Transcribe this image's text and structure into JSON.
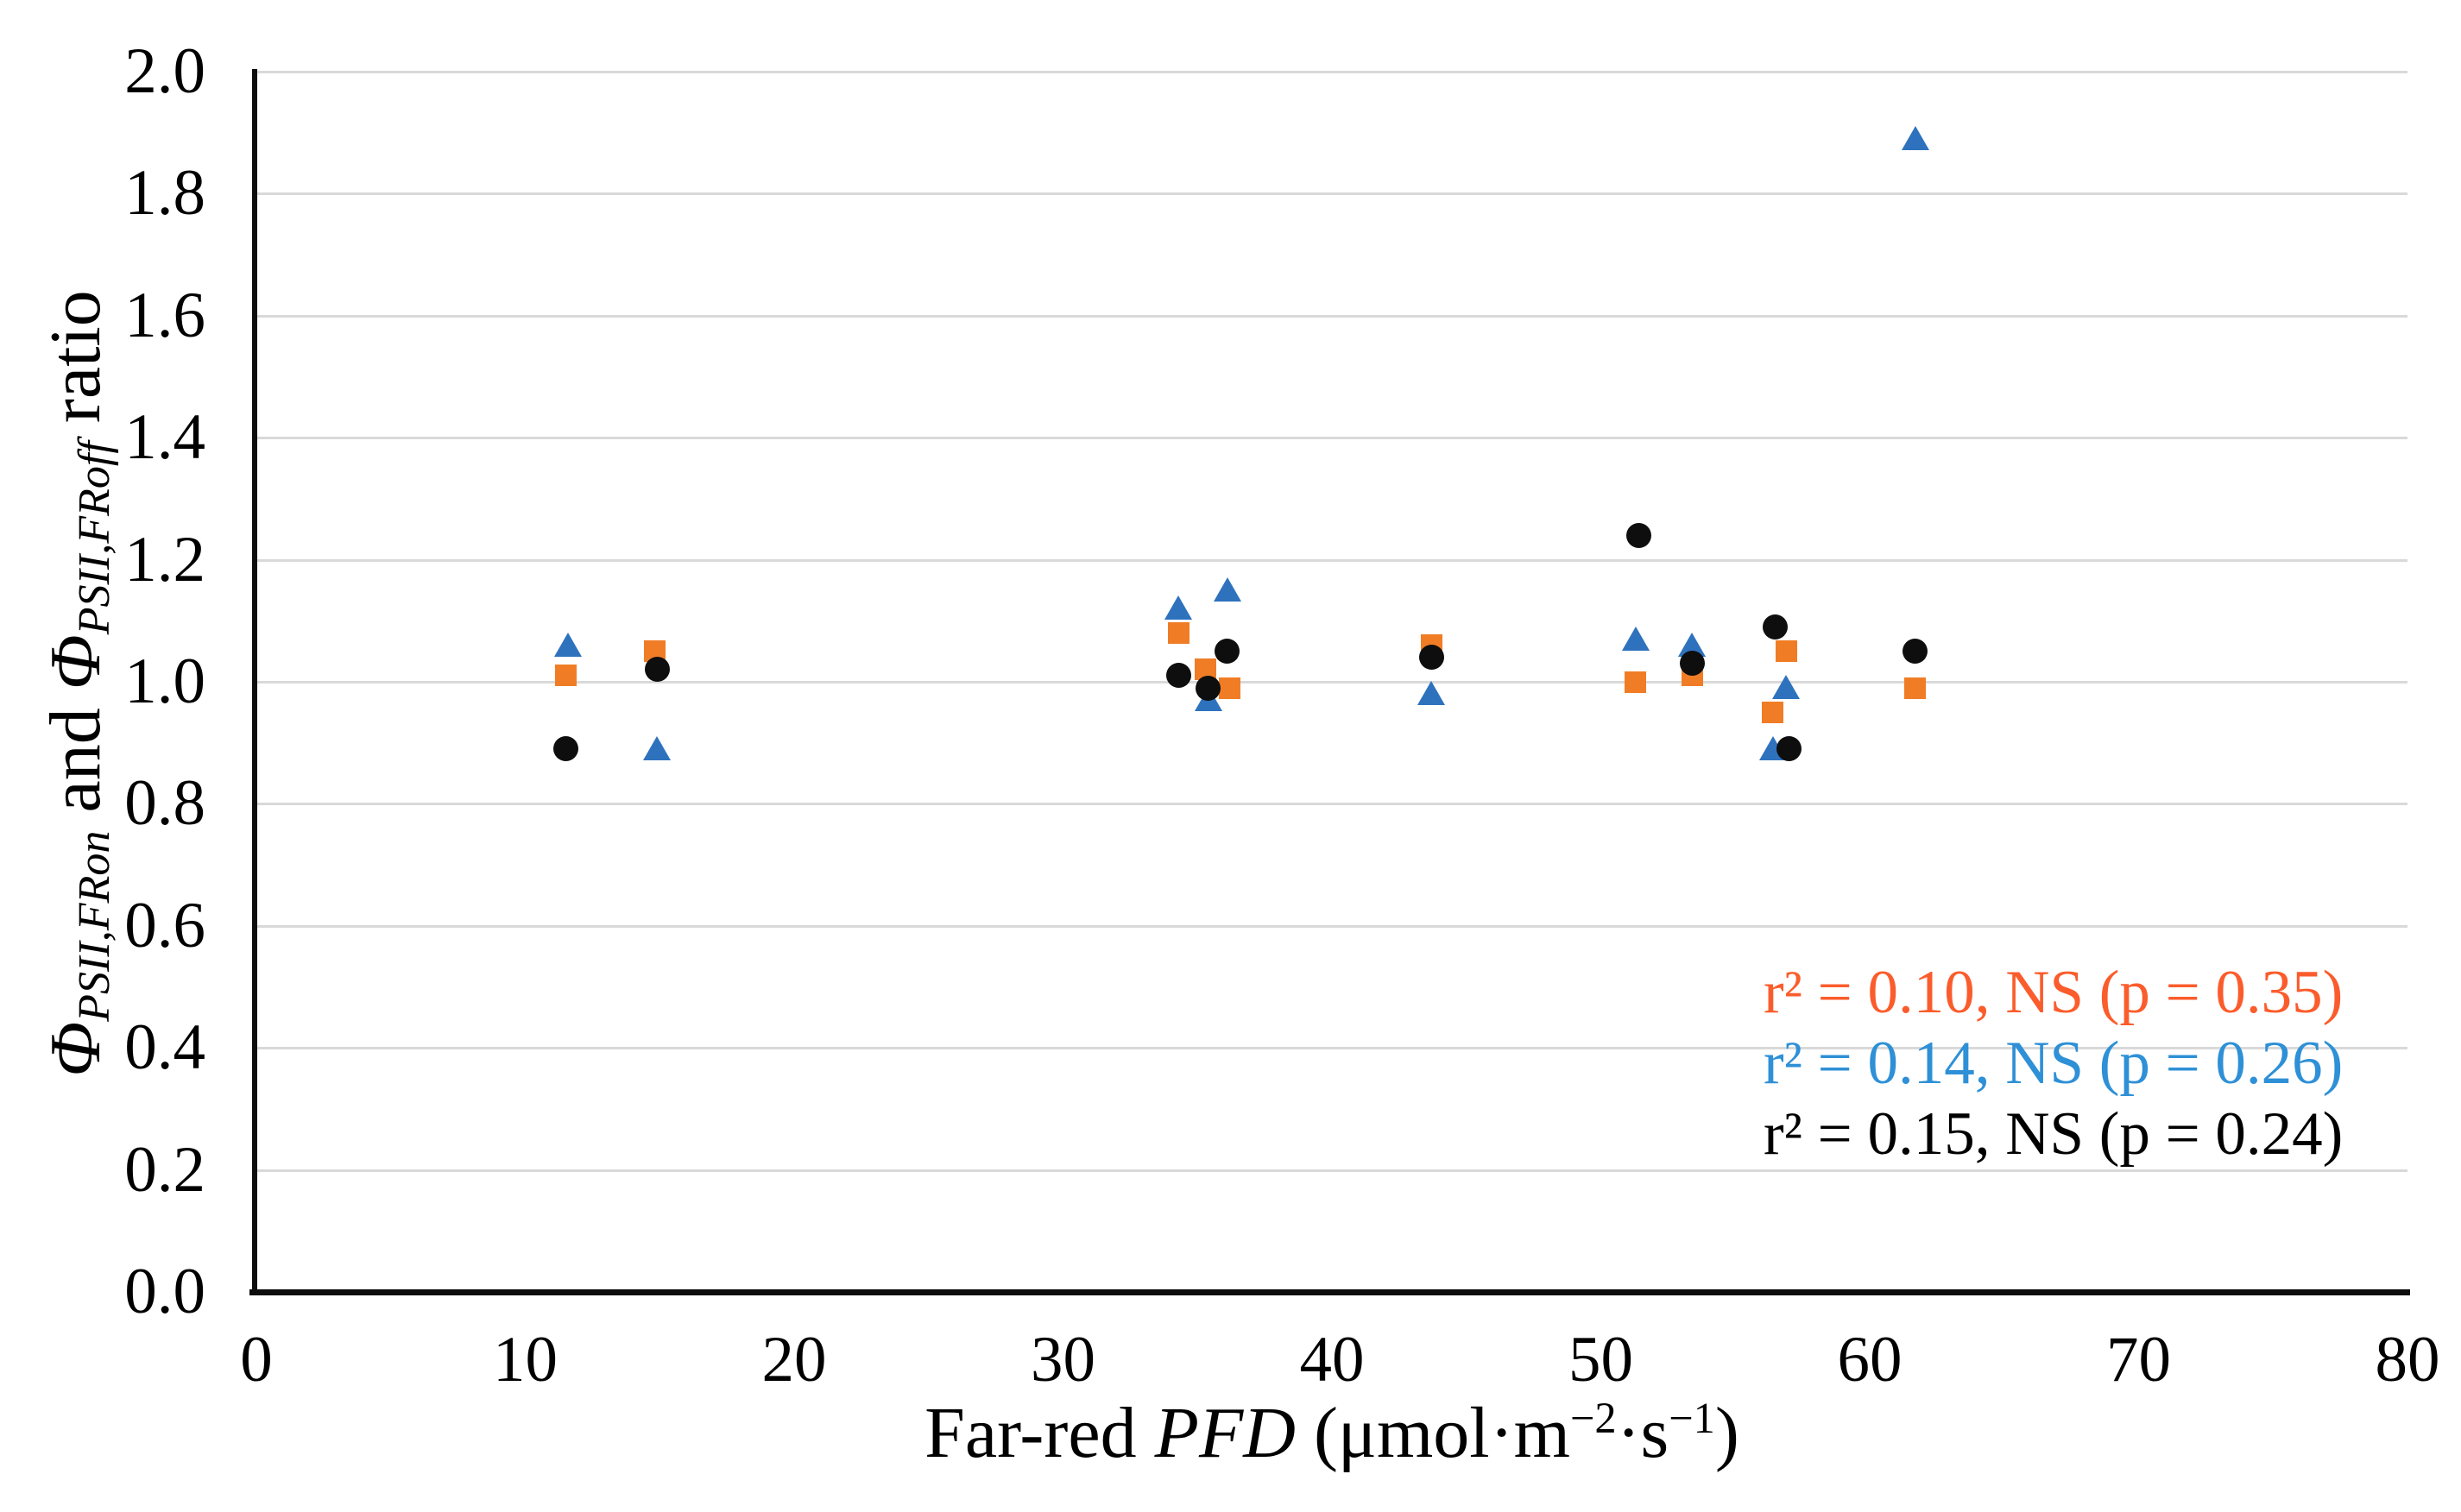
{
  "chart_data": {
    "type": "scatter",
    "title": "",
    "xlabel_parts": {
      "pre": "Far-red ",
      "italic": "PFD",
      "unit1": " (μmol·m",
      "sup1": "−2",
      "unit2": "·s",
      "sup2": "−1",
      "close": ")"
    },
    "ylabel_parts": {
      "phi1": "Φ",
      "sub1": "PSII,FRon",
      "mid": " and ",
      "phi2": "Φ",
      "sub2": "PSII,FRoff",
      "tail": " ratio"
    },
    "xlim": [
      0,
      80
    ],
    "ylim": [
      0.0,
      2.0
    ],
    "xticks": {
      "values": [
        0,
        10,
        20,
        30,
        40,
        50,
        60,
        70,
        80
      ],
      "labels": [
        "0",
        "10",
        "20",
        "30",
        "40",
        "50",
        "60",
        "70",
        "80"
      ]
    },
    "yticks": {
      "values": [
        0.0,
        0.2,
        0.4,
        0.6,
        0.8,
        1.0,
        1.2,
        1.4,
        1.6,
        1.8,
        2.0
      ],
      "labels": [
        "0.0",
        "0.2",
        "0.4",
        "0.6",
        "0.8",
        "1.0",
        "1.2",
        "1.4",
        "1.6",
        "1.8",
        "2.0"
      ]
    },
    "grid": {
      "horizontal": true,
      "vertical": false,
      "color": "#D9D9D9"
    },
    "legend": "none",
    "series": [
      {
        "name": "orange-squares",
        "marker": "square",
        "color": "#F07D26",
        "points": [
          [
            11.5,
            1.01
          ],
          [
            14.8,
            1.05
          ],
          [
            34.3,
            1.08
          ],
          [
            35.3,
            1.02
          ],
          [
            36.2,
            0.99
          ],
          [
            43.7,
            1.06
          ],
          [
            51.3,
            1.0
          ],
          [
            53.4,
            1.01
          ],
          [
            56.4,
            0.95
          ],
          [
            56.9,
            1.05
          ],
          [
            61.7,
            0.99
          ]
        ]
      },
      {
        "name": "blue-triangles",
        "marker": "triangle",
        "color": "#2E72BE",
        "points": [
          [
            11.6,
            1.06
          ],
          [
            14.9,
            0.89
          ],
          [
            34.3,
            1.12
          ],
          [
            35.4,
            0.97
          ],
          [
            36.1,
            1.15
          ],
          [
            43.7,
            0.98
          ],
          [
            51.3,
            1.07
          ],
          [
            53.4,
            1.06
          ],
          [
            56.4,
            0.89
          ],
          [
            56.9,
            0.99
          ],
          [
            61.7,
            1.89
          ]
        ]
      },
      {
        "name": "black-circles",
        "marker": "circle",
        "color": "#0e0e0e",
        "points": [
          [
            11.5,
            0.89
          ],
          [
            14.9,
            1.02
          ],
          [
            34.3,
            1.01
          ],
          [
            35.4,
            0.99
          ],
          [
            36.1,
            1.05
          ],
          [
            43.7,
            1.04
          ],
          [
            51.4,
            1.24
          ],
          [
            53.4,
            1.03
          ],
          [
            56.5,
            1.09
          ],
          [
            57.0,
            0.89
          ],
          [
            61.7,
            1.05
          ]
        ]
      }
    ],
    "annotations": [
      {
        "text": "r² = 0.10, NS (p = 0.35)",
        "color": "#FB5C2C"
      },
      {
        "text": "r² = 0.14, NS (p = 0.26)",
        "color": "#2E90D6"
      },
      {
        "text": "r² = 0.15, NS (p = 0.24)",
        "color": "#000000"
      }
    ]
  }
}
